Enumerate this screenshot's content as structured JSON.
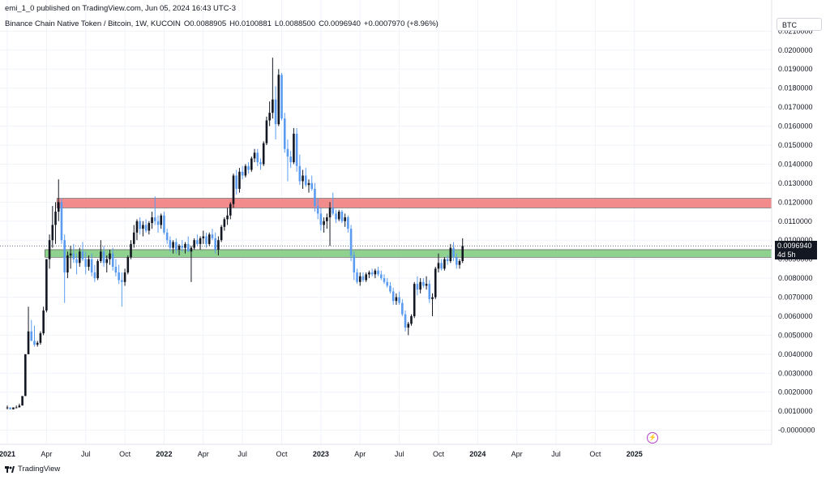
{
  "header": {
    "publish_line": "emi_1_0 published on TradingView.com, Jun 05, 2024 16:43 UTC-3",
    "symbol_line": "Binance Chain Native Token / Bitcoin, 1W, KUCOIN",
    "ohlc": {
      "open": "O0.0088905",
      "high": "H0.0100881",
      "low": "L0.0088500",
      "close": "C0.0096940",
      "change": "+0.0007970 (+8.96%)"
    }
  },
  "currency_badge": "BTC",
  "price_label": {
    "value": "0.0096940",
    "countdown": "4d 5h"
  },
  "footer": {
    "brand": "TradingView"
  },
  "colors": {
    "up": "#131722",
    "down": "#5b9cf0",
    "resistance_zone": "#f28b8b",
    "support_zone": "#8fd18f",
    "grid": "#f0f3fa"
  },
  "chart_data": {
    "type": "candlestick",
    "interval": "1W",
    "ylim": [
      -0.0004,
      0.0211
    ],
    "y_ticks": [
      "-0.0000000",
      "0.0010000",
      "0.0020000",
      "0.0030000",
      "0.0040000",
      "0.0050000",
      "0.0060000",
      "0.0070000",
      "0.0080000",
      "0.0090000",
      "0.0100000",
      "0.0110000",
      "0.0120000",
      "0.0130000",
      "0.0140000",
      "0.0150000",
      "0.0160000",
      "0.0170000",
      "0.0180000",
      "0.0190000",
      "0.0200000",
      "0.0210000"
    ],
    "x_ticks": [
      {
        "label": "2021",
        "i": 0
      },
      {
        "label": "Apr",
        "i": 13
      },
      {
        "label": "Jul",
        "i": 26
      },
      {
        "label": "Oct",
        "i": 39
      },
      {
        "label": "2022",
        "i": 52
      },
      {
        "label": "Apr",
        "i": 65
      },
      {
        "label": "Jul",
        "i": 78
      },
      {
        "label": "Oct",
        "i": 91
      },
      {
        "label": "2023",
        "i": 104
      },
      {
        "label": "Apr",
        "i": 117
      },
      {
        "label": "Jul",
        "i": 130
      },
      {
        "label": "Oct",
        "i": 143
      },
      {
        "label": "2024",
        "i": 156
      },
      {
        "label": "Apr",
        "i": 169
      },
      {
        "label": "Jul",
        "i": 182
      },
      {
        "label": "Oct",
        "i": 195
      },
      {
        "label": "2025",
        "i": 208
      }
    ],
    "zones": [
      {
        "name": "resistance",
        "from": 0.0117,
        "to": 0.0122,
        "start_i": 17
      },
      {
        "name": "support",
        "from": 0.0091,
        "to": 0.0095,
        "start_i": 13
      }
    ],
    "last_price": 0.009694,
    "candles": [
      [
        0.0012,
        0.0013,
        0.0011,
        0.0012
      ],
      [
        0.0012,
        0.0012,
        0.0011,
        0.0011
      ],
      [
        0.0011,
        0.0012,
        0.0011,
        0.0012
      ],
      [
        0.0012,
        0.0013,
        0.0012,
        0.0012
      ],
      [
        0.0012,
        0.0014,
        0.0012,
        0.0013
      ],
      [
        0.0013,
        0.0018,
        0.0013,
        0.0018
      ],
      [
        0.0018,
        0.004,
        0.0018,
        0.004
      ],
      [
        0.004,
        0.0065,
        0.004,
        0.0052
      ],
      [
        0.0052,
        0.0058,
        0.0047,
        0.0047
      ],
      [
        0.0047,
        0.0055,
        0.0044,
        0.0045
      ],
      [
        0.0045,
        0.0047,
        0.0044,
        0.0046
      ],
      [
        0.0046,
        0.0052,
        0.0045,
        0.0051
      ],
      [
        0.0051,
        0.0065,
        0.005,
        0.0063
      ],
      [
        0.0063,
        0.009,
        0.0062,
        0.009
      ],
      [
        0.009,
        0.0103,
        0.0085,
        0.01
      ],
      [
        0.01,
        0.0118,
        0.0096,
        0.0108
      ],
      [
        0.0108,
        0.012,
        0.0098,
        0.0115
      ],
      [
        0.0115,
        0.0132,
        0.011,
        0.012
      ],
      [
        0.012,
        0.0122,
        0.0098,
        0.01
      ],
      [
        0.01,
        0.0103,
        0.0067,
        0.0083
      ],
      [
        0.0083,
        0.0094,
        0.008,
        0.0092
      ],
      [
        0.0092,
        0.0097,
        0.0085,
        0.0093
      ],
      [
        0.0093,
        0.0098,
        0.0088,
        0.009
      ],
      [
        0.009,
        0.0093,
        0.0082,
        0.0088
      ],
      [
        0.0088,
        0.0096,
        0.0086,
        0.0094
      ],
      [
        0.0094,
        0.0099,
        0.0089,
        0.009
      ],
      [
        0.009,
        0.0094,
        0.0082,
        0.0086
      ],
      [
        0.0086,
        0.0092,
        0.0084,
        0.009
      ],
      [
        0.009,
        0.0093,
        0.0081,
        0.0083
      ],
      [
        0.0083,
        0.0087,
        0.0078,
        0.008
      ],
      [
        0.008,
        0.009,
        0.0079,
        0.0089
      ],
      [
        0.0089,
        0.01,
        0.0088,
        0.0094
      ],
      [
        0.0094,
        0.0097,
        0.0086,
        0.0088
      ],
      [
        0.0088,
        0.0092,
        0.0083,
        0.009
      ],
      [
        0.009,
        0.0095,
        0.0087,
        0.0093
      ],
      [
        0.0093,
        0.0096,
        0.0084,
        0.0086
      ],
      [
        0.0086,
        0.009,
        0.0081,
        0.0083
      ],
      [
        0.0083,
        0.0087,
        0.0077,
        0.0079
      ],
      [
        0.0079,
        0.0083,
        0.0065,
        0.0078
      ],
      [
        0.0078,
        0.0085,
        0.0076,
        0.0083
      ],
      [
        0.0083,
        0.0092,
        0.0082,
        0.0091
      ],
      [
        0.0091,
        0.01,
        0.009,
        0.0098
      ],
      [
        0.0098,
        0.0108,
        0.0096,
        0.0104
      ],
      [
        0.0104,
        0.0111,
        0.01,
        0.011
      ],
      [
        0.011,
        0.0112,
        0.0103,
        0.0106
      ],
      [
        0.0106,
        0.011,
        0.0102,
        0.0108
      ],
      [
        0.0108,
        0.0111,
        0.0104,
        0.0105
      ],
      [
        0.0105,
        0.011,
        0.0103,
        0.0109
      ],
      [
        0.0109,
        0.0115,
        0.0106,
        0.0112
      ],
      [
        0.0112,
        0.0123,
        0.0108,
        0.011
      ],
      [
        0.011,
        0.0113,
        0.0104,
        0.0108
      ],
      [
        0.0108,
        0.0114,
        0.0106,
        0.0113
      ],
      [
        0.0113,
        0.0115,
        0.0103,
        0.0104
      ],
      [
        0.0104,
        0.0106,
        0.0098,
        0.01
      ],
      [
        0.01,
        0.0102,
        0.0094,
        0.0096
      ],
      [
        0.0096,
        0.01,
        0.0093,
        0.0099
      ],
      [
        0.0099,
        0.0101,
        0.0093,
        0.0095
      ],
      [
        0.0095,
        0.0098,
        0.0092,
        0.0097
      ],
      [
        0.0097,
        0.01,
        0.0094,
        0.0096
      ],
      [
        0.0096,
        0.0099,
        0.0093,
        0.0098
      ],
      [
        0.0098,
        0.0102,
        0.0095,
        0.0094
      ],
      [
        0.0094,
        0.0097,
        0.0078,
        0.0096
      ],
      [
        0.0096,
        0.0101,
        0.0095,
        0.01
      ],
      [
        0.01,
        0.0103,
        0.0097,
        0.0098
      ],
      [
        0.0098,
        0.0102,
        0.0095,
        0.0101
      ],
      [
        0.0101,
        0.0105,
        0.0098,
        0.0102
      ],
      [
        0.0102,
        0.0104,
        0.0096,
        0.0098
      ],
      [
        0.0098,
        0.0104,
        0.0097,
        0.0103
      ],
      [
        0.0103,
        0.0106,
        0.01,
        0.0101
      ],
      [
        0.0101,
        0.0104,
        0.0093,
        0.0095
      ],
      [
        0.0095,
        0.0102,
        0.0092,
        0.01
      ],
      [
        0.01,
        0.0108,
        0.0099,
        0.0107
      ],
      [
        0.0107,
        0.0112,
        0.0105,
        0.0111
      ],
      [
        0.0111,
        0.0117,
        0.0108,
        0.0113
      ],
      [
        0.0113,
        0.012,
        0.0111,
        0.0119
      ],
      [
        0.0119,
        0.0135,
        0.0117,
        0.0134
      ],
      [
        0.0134,
        0.0137,
        0.0124,
        0.0127
      ],
      [
        0.0127,
        0.0138,
        0.0125,
        0.0136
      ],
      [
        0.0136,
        0.0139,
        0.0132,
        0.0134
      ],
      [
        0.0134,
        0.014,
        0.0133,
        0.0139
      ],
      [
        0.0139,
        0.0141,
        0.0135,
        0.0137
      ],
      [
        0.0137,
        0.0144,
        0.0136,
        0.0143
      ],
      [
        0.0143,
        0.0148,
        0.0141,
        0.0146
      ],
      [
        0.0146,
        0.0148,
        0.0139,
        0.0141
      ],
      [
        0.0141,
        0.0143,
        0.0137,
        0.014
      ],
      [
        0.014,
        0.0152,
        0.0139,
        0.0151
      ],
      [
        0.0151,
        0.0165,
        0.015,
        0.0163
      ],
      [
        0.0163,
        0.0173,
        0.016,
        0.0167
      ],
      [
        0.0167,
        0.0196,
        0.0164,
        0.0174
      ],
      [
        0.0174,
        0.0181,
        0.0153,
        0.0161
      ],
      [
        0.0161,
        0.019,
        0.016,
        0.0187
      ],
      [
        0.0187,
        0.0188,
        0.0163,
        0.0164
      ],
      [
        0.0164,
        0.0167,
        0.0146,
        0.0148
      ],
      [
        0.0148,
        0.0153,
        0.0131,
        0.0144
      ],
      [
        0.0144,
        0.0147,
        0.0138,
        0.0141
      ],
      [
        0.0141,
        0.0159,
        0.014,
        0.0156
      ],
      [
        0.0156,
        0.0159,
        0.0136,
        0.0139
      ],
      [
        0.0139,
        0.0145,
        0.0129,
        0.0131
      ],
      [
        0.0131,
        0.0137,
        0.0127,
        0.0134
      ],
      [
        0.0134,
        0.0138,
        0.0128,
        0.0129
      ],
      [
        0.0129,
        0.0132,
        0.0125,
        0.013
      ],
      [
        0.013,
        0.0134,
        0.0126,
        0.0127
      ],
      [
        0.0127,
        0.013,
        0.0115,
        0.0118
      ],
      [
        0.0118,
        0.0122,
        0.0111,
        0.0114
      ],
      [
        0.0114,
        0.0117,
        0.0105,
        0.0108
      ],
      [
        0.0108,
        0.0112,
        0.0104,
        0.011
      ],
      [
        0.011,
        0.0114,
        0.0106,
        0.0112
      ],
      [
        0.0112,
        0.012,
        0.0097,
        0.0117
      ],
      [
        0.0117,
        0.0125,
        0.0113,
        0.0114
      ],
      [
        0.0114,
        0.0116,
        0.0109,
        0.0111
      ],
      [
        0.0111,
        0.0116,
        0.011,
        0.0115
      ],
      [
        0.0115,
        0.0116,
        0.0109,
        0.011
      ],
      [
        0.011,
        0.0114,
        0.0107,
        0.0112
      ],
      [
        0.0112,
        0.0113,
        0.0104,
        0.0106
      ],
      [
        0.0106,
        0.0108,
        0.0089,
        0.0092
      ],
      [
        0.0092,
        0.0094,
        0.0079,
        0.0083
      ],
      [
        0.0083,
        0.0085,
        0.0077,
        0.0078
      ],
      [
        0.0078,
        0.0083,
        0.0076,
        0.0081
      ],
      [
        0.0081,
        0.0083,
        0.0078,
        0.0079
      ],
      [
        0.0079,
        0.0083,
        0.0078,
        0.0082
      ],
      [
        0.0082,
        0.0084,
        0.008,
        0.0083
      ],
      [
        0.0083,
        0.0085,
        0.0081,
        0.0082
      ],
      [
        0.0082,
        0.0085,
        0.008,
        0.0084
      ],
      [
        0.0084,
        0.0086,
        0.0081,
        0.0082
      ],
      [
        0.0082,
        0.0084,
        0.0079,
        0.008
      ],
      [
        0.008,
        0.0082,
        0.0077,
        0.0078
      ],
      [
        0.0078,
        0.008,
        0.0075,
        0.0076
      ],
      [
        0.0076,
        0.0078,
        0.0072,
        0.0073
      ],
      [
        0.0073,
        0.0075,
        0.0066,
        0.0068
      ],
      [
        0.0068,
        0.0072,
        0.0066,
        0.007
      ],
      [
        0.007,
        0.0073,
        0.0066,
        0.0067
      ],
      [
        0.0067,
        0.0069,
        0.006,
        0.0061
      ],
      [
        0.0061,
        0.0063,
        0.0052,
        0.0054
      ],
      [
        0.0054,
        0.0057,
        0.005,
        0.0056
      ],
      [
        0.0056,
        0.0061,
        0.0055,
        0.006
      ],
      [
        0.006,
        0.0078,
        0.0059,
        0.0077
      ],
      [
        0.0077,
        0.0081,
        0.0071,
        0.0074
      ],
      [
        0.0074,
        0.008,
        0.0072,
        0.0078
      ],
      [
        0.0078,
        0.008,
        0.0075,
        0.0076
      ],
      [
        0.0076,
        0.0081,
        0.0074,
        0.0077
      ],
      [
        0.0077,
        0.0079,
        0.0067,
        0.0069
      ],
      [
        0.0069,
        0.0072,
        0.006,
        0.007
      ],
      [
        0.007,
        0.0086,
        0.0069,
        0.0085
      ],
      [
        0.0085,
        0.0093,
        0.0083,
        0.0088
      ],
      [
        0.0088,
        0.009,
        0.0084,
        0.0085
      ],
      [
        0.0085,
        0.0091,
        0.0084,
        0.009
      ],
      [
        0.009,
        0.0092,
        0.0087,
        0.0089
      ],
      [
        0.0089,
        0.0098,
        0.0088,
        0.0096
      ],
      [
        0.0096,
        0.0099,
        0.0089,
        0.0091
      ],
      [
        0.0091,
        0.0093,
        0.0085,
        0.0087
      ],
      [
        0.0087,
        0.009,
        0.0085,
        0.0089
      ],
      [
        0.0089,
        0.0101,
        0.0088,
        0.0097
      ]
    ]
  }
}
